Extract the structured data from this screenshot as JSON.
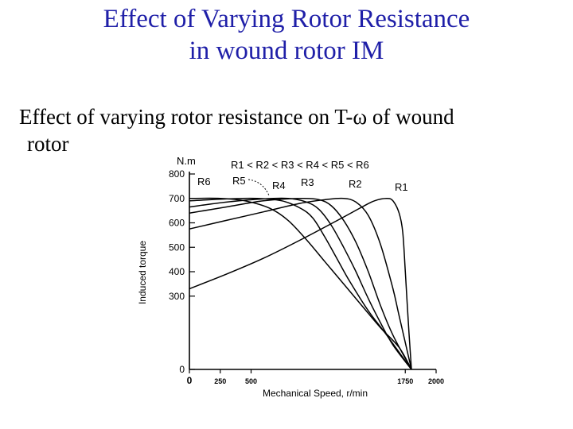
{
  "slide": {
    "title_line1": "Effect of Varying Rotor Resistance",
    "title_line2": "in wound rotor IM",
    "text_line1": "Effect of varying rotor resistance on T-ω of wound",
    "text_line2": "rotor"
  },
  "chart_data": {
    "type": "line",
    "title": "R1 < R2 < R3 < R4 < R5 < R6",
    "xlabel": "Mechanical Speed, r/min",
    "ylabel": "Induced torque",
    "y_unit": "N.m",
    "x_ticks": [
      {
        "value": 0,
        "label": "0"
      },
      {
        "value": 250,
        "label": "250"
      },
      {
        "value": 500,
        "label": "500"
      },
      {
        "value": 1750,
        "label": "1750"
      },
      {
        "value": 2000,
        "label": "2000"
      }
    ],
    "y_ticks": [
      {
        "value": 0,
        "label": "0"
      },
      {
        "value": 300,
        "label": "300"
      },
      {
        "value": 400,
        "label": "400"
      },
      {
        "value": 500,
        "label": "500"
      },
      {
        "value": 600,
        "label": "600"
      },
      {
        "value": 700,
        "label": "700"
      },
      {
        "value": 800,
        "label": "800"
      }
    ],
    "series": [
      {
        "name": "R1",
        "x": [
          0,
          300,
          600,
          900,
          1200,
          1400,
          1500,
          1600,
          1650,
          1700,
          1730,
          1750,
          1780,
          1800
        ],
        "y": [
          330,
          390,
          455,
          530,
          610,
          665,
          690,
          700,
          690,
          640,
          560,
          400,
          150,
          0
        ]
      },
      {
        "name": "R2",
        "x": [
          0,
          300,
          600,
          900,
          1100,
          1250,
          1350,
          1450,
          1550,
          1650,
          1700,
          1800
        ],
        "y": [
          575,
          610,
          645,
          680,
          695,
          700,
          685,
          630,
          510,
          330,
          220,
          0
        ]
      },
      {
        "name": "R3",
        "x": [
          0,
          300,
          600,
          900,
          1050,
          1150,
          1250,
          1350,
          1450,
          1550,
          1650,
          1800
        ],
        "y": [
          640,
          665,
          690,
          700,
          695,
          670,
          610,
          520,
          400,
          260,
          140,
          0
        ]
      },
      {
        "name": "R4",
        "x": [
          0,
          300,
          600,
          800,
          950,
          1050,
          1150,
          1250,
          1350,
          1450,
          1550,
          1650,
          1800
        ],
        "y": [
          665,
          685,
          698,
          700,
          685,
          655,
          590,
          500,
          400,
          290,
          190,
          100,
          0
        ]
      },
      {
        "name": "R5",
        "x": [
          0,
          300,
          550,
          750,
          900,
          1000,
          1100,
          1200,
          1300,
          1450,
          1600,
          1800
        ],
        "y": [
          690,
          698,
          700,
          690,
          660,
          620,
          540,
          450,
          360,
          240,
          140,
          0
        ]
      },
      {
        "name": "R6",
        "x": [
          0,
          250,
          450,
          650,
          800,
          950,
          1100,
          1250,
          1400,
          1550,
          1700,
          1800
        ],
        "y": [
          700,
          700,
          690,
          660,
          610,
          530,
          440,
          350,
          260,
          170,
          90,
          0
        ]
      }
    ],
    "xlim": [
      0,
      2000
    ],
    "ylim": [
      0,
      800
    ],
    "grid": false,
    "line_color": "#000000"
  }
}
